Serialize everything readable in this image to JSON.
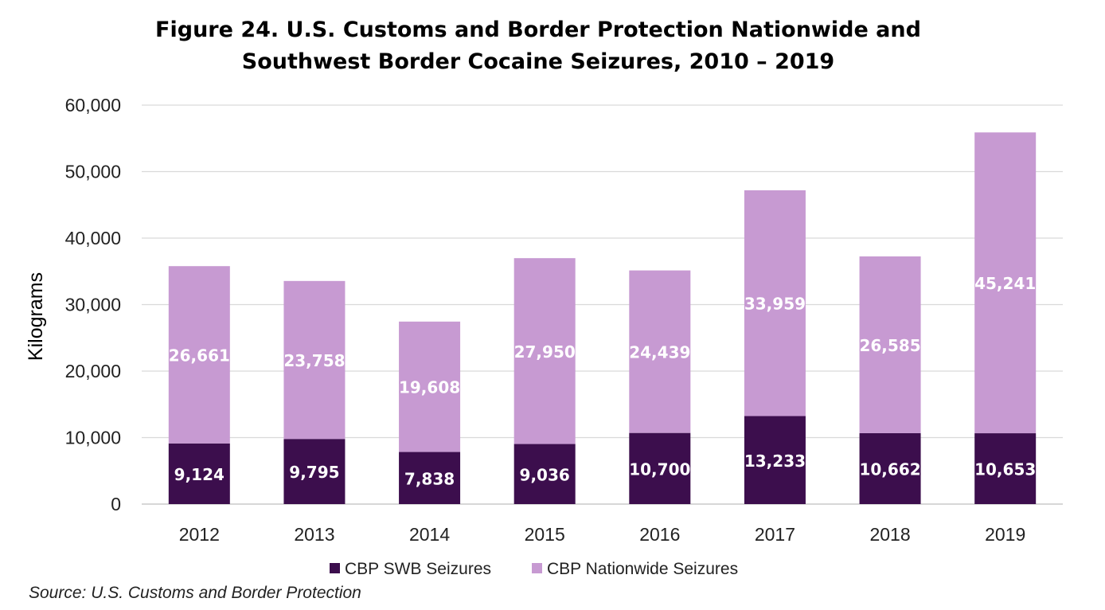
{
  "chart_data": {
    "type": "bar",
    "stacked": true,
    "title_line1": "Figure 24. U.S. Customs and Border Protection Nationwide and",
    "title_line2": "Southwest Border Cocaine Seizures, 2010 – 2019",
    "ylabel": "Kilograms",
    "xlabel": "",
    "ylim": [
      0,
      60000
    ],
    "y_ticks": [
      "0",
      "10,000",
      "20,000",
      "30,000",
      "40,000",
      "50,000",
      "60,000"
    ],
    "grid": true,
    "legend_position": "bottom",
    "categories": [
      "2012",
      "2013",
      "2014",
      "2015",
      "2016",
      "2017",
      "2018",
      "2019"
    ],
    "series": [
      {
        "name": "CBP SWB Seizures",
        "color": "#3c0e4d",
        "values": [
          9124,
          9795,
          7838,
          9036,
          10700,
          13233,
          10662,
          10653
        ],
        "labels": [
          "9,124",
          "9,795",
          "7,838",
          "9,036",
          "10,700",
          "13,233",
          "10,662",
          "10,653"
        ]
      },
      {
        "name": "CBP Nationwide Seizures",
        "color": "#c79ad2",
        "values": [
          26661,
          23758,
          19608,
          27950,
          24439,
          33959,
          26585,
          45241
        ],
        "labels": [
          "26,661",
          "23,758",
          "19,608",
          "27,950",
          "24,439",
          "33,959",
          "26,585",
          "45,241"
        ]
      }
    ]
  },
  "source": "Source: U.S. Customs and Border Protection"
}
